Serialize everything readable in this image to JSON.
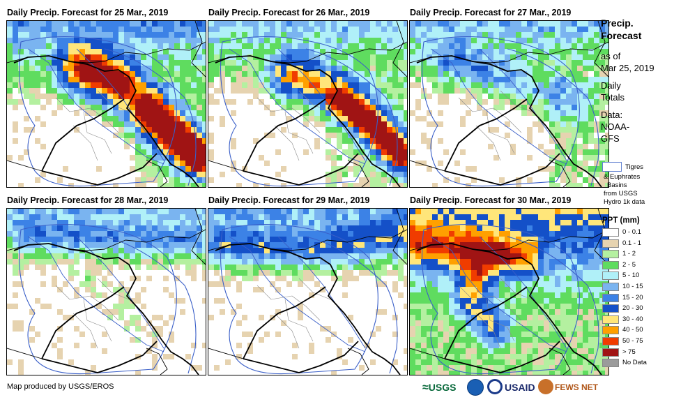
{
  "panels": [
    {
      "title": "Daily Precip. Forecast for 25 Mar., 2019",
      "pattern": "d25"
    },
    {
      "title": "Daily Precip. Forecast for 26 Mar., 2019",
      "pattern": "d26"
    },
    {
      "title": "Daily Precip. Forecast for 27 Mar., 2019",
      "pattern": "d27"
    },
    {
      "title": "Daily Precip. Forecast for 28 Mar., 2019",
      "pattern": "d28"
    },
    {
      "title": "Daily Precip. Forecast for 29 Mar., 2019",
      "pattern": "d29"
    },
    {
      "title": "Daily Precip. Forecast for 30 Mar., 2019",
      "pattern": "d30"
    }
  ],
  "side": {
    "title_line1": "Precip.",
    "title_line2": "Forecast",
    "asof_line1": "as of",
    "asof_line2": "Mar 25, 2019",
    "daily_line1": "Daily",
    "daily_line2": "Totals",
    "data_line1": "Data:",
    "data_line2": "NOAA-",
    "data_line3": "GFS"
  },
  "basin_legend": {
    "line1": "Tigres",
    "line2": "& Euphrates",
    "line3": "Basins",
    "line4": "from USGS",
    "line5": "Hydro 1k data"
  },
  "legend": {
    "title": "PPT (mm)",
    "items": [
      {
        "label": "0 - 0.1",
        "color": "#ffffff"
      },
      {
        "label": "0.1 - 1",
        "color": "#e6d3b0"
      },
      {
        "label": "1 - 2",
        "color": "#b4f0a0"
      },
      {
        "label": "2 - 5",
        "color": "#5fdc5f"
      },
      {
        "label": "5 - 10",
        "color": "#b0f0f8"
      },
      {
        "label": "10 - 15",
        "color": "#7ab4f0"
      },
      {
        "label": "15 - 20",
        "color": "#3c82e6"
      },
      {
        "label": "20 - 30",
        "color": "#1450c8"
      },
      {
        "label": "30 - 40",
        "color": "#ffe67a"
      },
      {
        "label": "40 - 50",
        "color": "#ffa000"
      },
      {
        "label": "50 - 75",
        "color": "#f03c00"
      },
      {
        "label": "> 75",
        "color": "#a01414"
      },
      {
        "label": "No Data",
        "color": "#9b9b9b"
      }
    ]
  },
  "credit": "Map produced by USGS/EROS",
  "logos": {
    "usgs": "USGS",
    "usaid": "USAID",
    "fewsnet": "FEWS NET"
  }
}
